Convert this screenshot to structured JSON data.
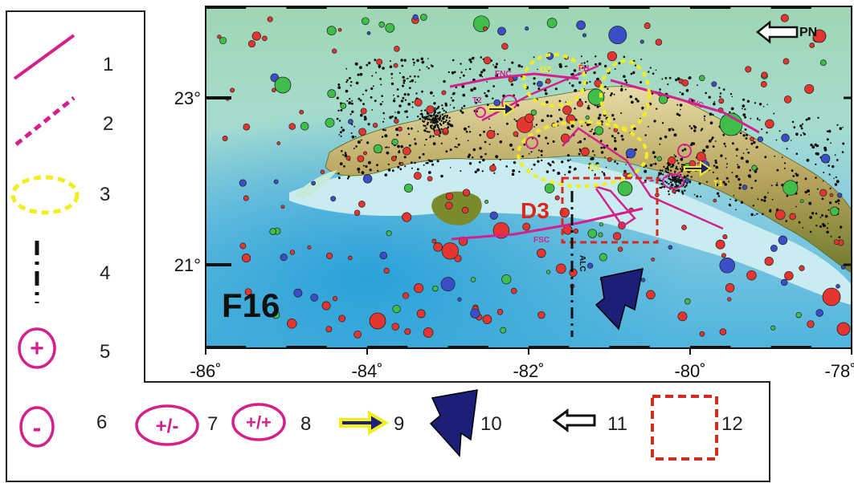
{
  "panel_label": "F16",
  "north_label": "PN",
  "lat_ticks": [
    {
      "value": 23,
      "label": "23°"
    },
    {
      "value": 21,
      "label": "21°"
    }
  ],
  "lon_ticks": [
    {
      "value": -86,
      "label": "-86˚"
    },
    {
      "value": -84,
      "label": "-84˚"
    },
    {
      "value": -82,
      "label": "-82˚"
    },
    {
      "value": -80,
      "label": "-80˚"
    },
    {
      "value": -78,
      "label": "-78˚"
    }
  ],
  "map_labels": {
    "fnc_west": "FNC",
    "fnc_east": "FNC",
    "fh": "FH",
    "fsc": "FSC",
    "alc": "ALC",
    "d1": "D1",
    "d2": "D2",
    "d3": "D3",
    "t1": "T1",
    "t2": "T2"
  },
  "legend": [
    {
      "number": "1",
      "symbol": "solid-fault-line"
    },
    {
      "number": "2",
      "symbol": "dashed-fault-line"
    },
    {
      "number": "3",
      "symbol": "yellow-dashed-ellipse"
    },
    {
      "number": "4",
      "symbol": "black-dash-dot-line"
    },
    {
      "number": "5",
      "symbol": "plus-circle",
      "text": "+"
    },
    {
      "number": "6",
      "symbol": "minus-circle",
      "text": "-"
    },
    {
      "number": "7",
      "symbol": "plus-minus-ellipse",
      "text": "+/-"
    },
    {
      "number": "8",
      "symbol": "plus-plus-ellipse",
      "text": "+/+"
    },
    {
      "number": "9",
      "symbol": "yellow-arrow"
    },
    {
      "number": "10",
      "symbol": "big-blue-arrow"
    },
    {
      "number": "11",
      "symbol": "hollow-arrow"
    },
    {
      "number": "12",
      "symbol": "red-dashed-square"
    }
  ],
  "colors": {
    "fault": "#d4208c",
    "ellipse": "#f2ee1e",
    "quake_red": "#e53530",
    "quake_green": "#3fbf4a",
    "quake_blue": "#3a4fc6",
    "arrow_blue": "#1c1f78",
    "box_red": "#d62a20"
  }
}
